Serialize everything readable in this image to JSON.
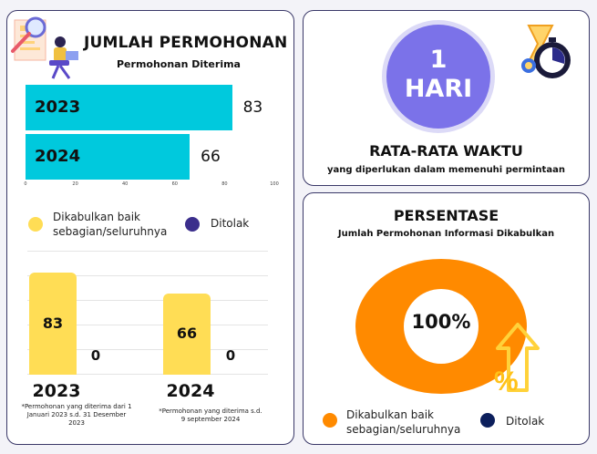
{
  "permohonan": {
    "title": "JUMLAH PERMOHONAN",
    "subtitle": "Permohonan Diterima"
  },
  "waktu": {
    "value_line1": "1",
    "value_line2": "HARI",
    "title": "RATA-RATA WAKTU",
    "subtitle": "yang diperlukan dalam memenuhi permintaan"
  },
  "persentase": {
    "title": "PERSENTASE",
    "subtitle": "Jumlah Permohonan Informasi Dikabulkan",
    "center_label": "100%",
    "legend": [
      {
        "label_line1": "Dikabulkan baik",
        "label_line2": "sebagian/seluruhnya",
        "color": "#ff8a00"
      },
      {
        "label": "Ditolak",
        "color": "#0c1f5c"
      }
    ]
  },
  "legend_mid": [
    {
      "label_line1": "Dikabulkan baik",
      "label_line2": "sebagian/seluruhnya",
      "color": "#ffdd55"
    },
    {
      "label": "Ditolak",
      "color": "#3b2e8c"
    }
  ],
  "notes": {
    "n2023": "*Permohonan yang diterima dari 1 Januari 2023 s.d. 31 Desember 2023",
    "n2024": "*Permohonan yang diterima s.d. 9 september 2024"
  },
  "colors": {
    "cyan": "#00c9dd",
    "yellow": "#ffdd55",
    "purple_circle": "#7b72e9",
    "orange": "#ff8a00",
    "card_border": "#3a3868"
  },
  "chart_data": [
    {
      "type": "bar",
      "orientation": "horizontal",
      "categories": [
        "2023",
        "2024"
      ],
      "values": [
        83,
        66
      ],
      "xlim": [
        0,
        100
      ],
      "xticks": [
        0,
        20,
        40,
        60,
        80,
        100
      ]
    },
    {
      "type": "bar",
      "orientation": "vertical",
      "categories": [
        "2023",
        "2024"
      ],
      "series": [
        {
          "name": "Dikabulkan baik sebagian/seluruhnya",
          "values": [
            83,
            66
          ]
        },
        {
          "name": "Ditolak",
          "values": [
            0,
            0
          ]
        }
      ]
    },
    {
      "type": "pie",
      "style": "donut",
      "labels": [
        "Dikabulkan baik sebagian/seluruhnya",
        "Ditolak"
      ],
      "values": [
        100,
        0
      ]
    }
  ]
}
